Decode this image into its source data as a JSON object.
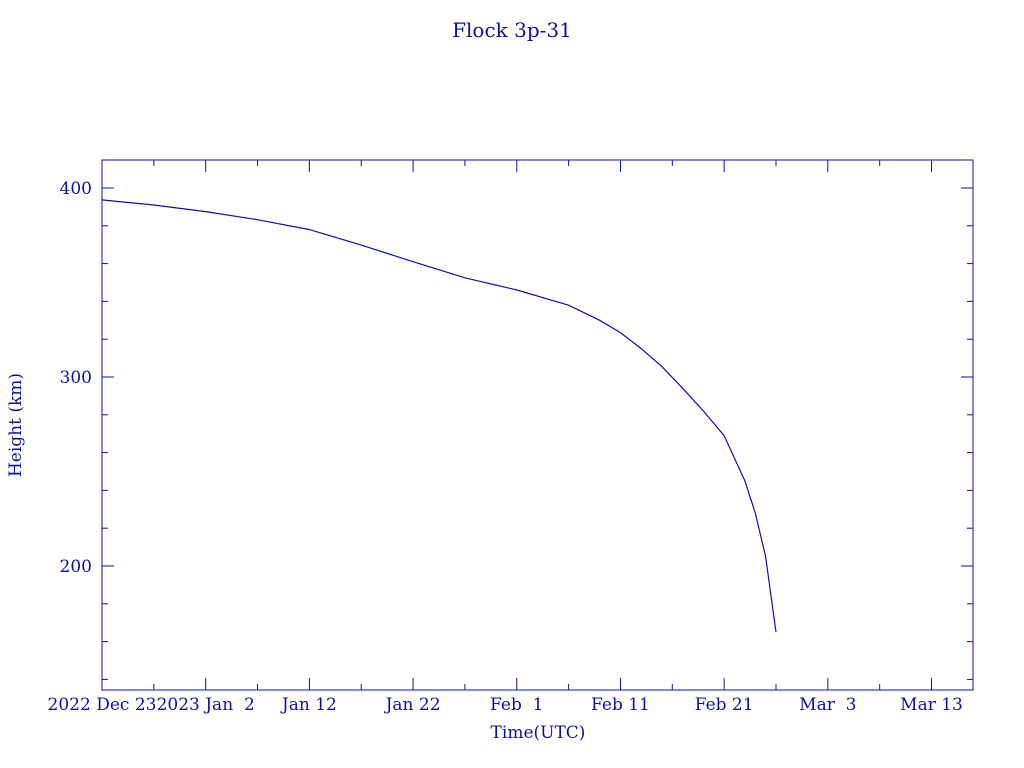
{
  "chart_data": {
    "type": "line",
    "title": "Flock 3p-31",
    "x_label": "Time(UTC)",
    "y_label": "Height (km)",
    "color": "#1010a0",
    "x": [
      "2022-12-23",
      "2022-12-28",
      "2023-01-02",
      "2023-01-07",
      "2023-01-12",
      "2023-01-17",
      "2023-01-22",
      "2023-01-27",
      "2023-02-01",
      "2023-02-06",
      "2023-02-09",
      "2023-02-11",
      "2023-02-13",
      "2023-02-15",
      "2023-02-17",
      "2023-02-19",
      "2023-02-21",
      "2023-02-22",
      "2023-02-23",
      "2023-02-24",
      "2023-02-25",
      "2023-02-26"
    ],
    "values": [
      393.7,
      391,
      387.5,
      383.2,
      378,
      369.8,
      361,
      352.5,
      346,
      338,
      330,
      323.5,
      315,
      305.5,
      294,
      282,
      269,
      257,
      245,
      228,
      205,
      165
    ],
    "xlim": [
      "2022-12-23",
      "2023-03-17"
    ],
    "xticks": [
      {
        "value": "2022-12-23",
        "label": "2022 Dec 23"
      },
      {
        "value": "2023-01-02",
        "label": "2023 Jan  2"
      },
      {
        "value": "2023-01-12",
        "label": "Jan 12"
      },
      {
        "value": "2023-01-22",
        "label": "Jan 22"
      },
      {
        "value": "2023-02-01",
        "label": "Feb  1"
      },
      {
        "value": "2023-02-11",
        "label": "Feb 11"
      },
      {
        "value": "2023-02-21",
        "label": "Feb 21"
      },
      {
        "value": "2023-03-03",
        "label": "Mar  3"
      },
      {
        "value": "2023-03-13",
        "label": "Mar 13"
      }
    ],
    "xminorticks": [
      "2022-12-28",
      "2023-01-07",
      "2023-01-17",
      "2023-01-27",
      "2023-02-06",
      "2023-02-16",
      "2023-02-26",
      "2023-03-08"
    ],
    "ylim": [
      134.4,
      414.8
    ],
    "yticks": [
      200,
      300,
      400
    ],
    "yminorticks": [
      140,
      160,
      180,
      220,
      240,
      260,
      280,
      320,
      340,
      360,
      380
    ]
  }
}
